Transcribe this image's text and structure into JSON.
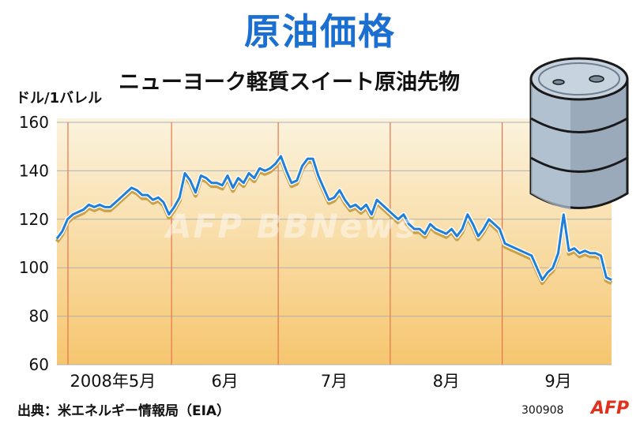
{
  "header": {
    "title": "原油価格",
    "subtitle": "ニューヨーク軽質スイート原油先物",
    "unit": "ドル/1バレル"
  },
  "footer": {
    "source": "出典：米エネルギー情報局（EIA）",
    "code": "300908",
    "logo": "AFP"
  },
  "watermark": "AFP BBNews",
  "colors": {
    "line": "#1f7fd6",
    "shadow": "#c9a24a",
    "gradient_top": "#fbf3de",
    "gradient_bottom": "#f6c66f",
    "separator": "#e8744a"
  },
  "chart_data": {
    "type": "line",
    "title": "原油価格",
    "subtitle": "ニューヨーク軽質スイート原油先物",
    "ylabel": "ドル/1バレル",
    "ylim": [
      60,
      160
    ],
    "yticks": [
      60,
      80,
      100,
      120,
      140,
      160
    ],
    "grid": true,
    "months": [
      "2008年5月",
      "6月",
      "7月",
      "8月",
      "9月"
    ],
    "month_boundaries": [
      21.5,
      41.5,
      62.5,
      83.5
    ],
    "x": [
      0,
      1,
      2,
      3,
      4,
      5,
      6,
      7,
      8,
      9,
      10,
      11,
      12,
      13,
      14,
      15,
      16,
      17,
      18,
      19,
      20,
      21,
      22,
      23,
      24,
      25,
      26,
      27,
      28,
      29,
      30,
      31,
      32,
      33,
      34,
      35,
      36,
      37,
      38,
      39,
      40,
      41,
      42,
      43,
      44,
      45,
      46,
      47,
      48,
      49,
      50,
      51,
      52,
      53,
      54,
      55,
      56,
      57,
      58,
      59,
      60,
      61,
      62,
      63,
      64,
      65,
      66,
      67,
      68,
      69,
      70,
      71,
      72,
      73,
      74,
      75,
      76,
      77,
      78,
      79,
      80,
      81,
      82,
      83,
      84,
      85,
      86,
      87,
      88,
      89,
      90,
      91,
      92,
      93,
      94,
      95,
      96,
      97,
      98,
      99,
      100,
      101,
      102,
      103,
      104
    ],
    "series": [
      {
        "values": [
          112,
          115,
          120,
          122,
          123,
          124,
          126,
          125,
          126,
          125,
          125,
          127,
          129,
          131,
          133,
          132,
          130,
          130,
          128,
          129,
          127,
          122,
          125,
          129,
          139,
          136,
          131,
          138,
          137,
          135,
          135,
          134,
          138,
          133,
          137,
          135,
          139,
          137,
          141,
          140,
          141,
          143,
          146,
          140,
          135,
          136,
          142,
          145,
          145,
          138,
          133,
          128,
          129,
          132,
          128,
          125,
          126,
          124,
          126,
          122,
          128,
          126,
          124,
          122,
          120,
          122,
          118,
          116,
          116,
          114,
          118,
          116,
          115,
          114,
          116,
          113,
          116,
          122,
          118,
          113,
          116,
          120,
          118,
          116,
          110,
          109,
          108,
          107,
          106,
          105,
          100,
          95,
          98,
          100,
          106,
          122,
          107,
          108,
          106,
          107,
          106,
          106,
          105,
          96,
          95
        ]
      }
    ]
  }
}
